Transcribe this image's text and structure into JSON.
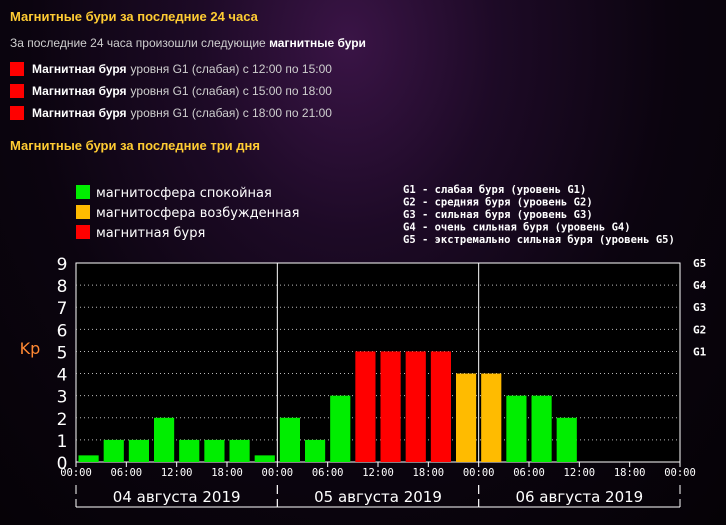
{
  "header24": {
    "title": "Магнитные бури за последние 24 часа"
  },
  "intro": {
    "text": "За последние 24 часа произошли следующие",
    "bold": "магнитные бури"
  },
  "storms": [
    {
      "name": "Магнитная буря",
      "detail": "уровня G1 (слабая) с 12:00 по 15:00"
    },
    {
      "name": "Магнитная буря",
      "detail": "уровня G1 (слабая) с 15:00 по 18:00"
    },
    {
      "name": "Магнитная буря",
      "detail": "уровня G1 (слабая) с 18:00 по 21:00"
    }
  ],
  "header3d": {
    "title": "Магнитные бури за последние три дня"
  },
  "colors": {
    "calm": "#00ee00",
    "excited": "#ffbb00",
    "storm": "#ff0000",
    "title": "#ffcc33",
    "kp": "#ff8833"
  },
  "chart_data": {
    "type": "bar",
    "ylabel": "Kp",
    "ylim": [
      0,
      9
    ],
    "yticks": [
      0,
      1,
      2,
      3,
      4,
      5,
      6,
      7,
      8,
      9
    ],
    "right_ticks": [
      {
        "label": "G5",
        "value": 9
      },
      {
        "label": "G4",
        "value": 8
      },
      {
        "label": "G3",
        "value": 7
      },
      {
        "label": "G2",
        "value": 6
      },
      {
        "label": "G1",
        "value": 5
      }
    ],
    "grid": true,
    "legend": [
      {
        "label": "магнитосфера спокойная",
        "color": "#00ee00"
      },
      {
        "label": "магнитосфера возбужденная",
        "color": "#ffbb00"
      },
      {
        "label": "магнитная буря",
        "color": "#ff0000"
      }
    ],
    "legend_placement": "top-left",
    "g_legend": [
      "G1 - слабая буря (уровень G1)",
      "G2 - средняя буря (уровень G2)",
      "G3 - сильная буря (уровень G3)",
      "G4 - очень сильная буря (уровень G4)",
      "G5 - экстремально сильная буря (уровень G5)"
    ],
    "xtick_labels": [
      "00:00",
      "06:00",
      "12:00",
      "18:00",
      "00:00",
      "06:00",
      "12:00",
      "18:00",
      "00:00",
      "06:00",
      "12:00",
      "18:00",
      "00:00"
    ],
    "day_labels": [
      "04 августа 2019",
      "05 августа 2019",
      "06 августа 2019"
    ],
    "values": [
      0.3,
      1,
      1,
      2,
      1,
      1,
      1,
      0.3,
      2,
      1,
      3,
      5,
      5,
      5,
      5,
      4,
      4,
      3,
      3,
      2
    ],
    "status": [
      "calm",
      "calm",
      "calm",
      "calm",
      "calm",
      "calm",
      "calm",
      "calm",
      "calm",
      "calm",
      "calm",
      "storm",
      "storm",
      "storm",
      "storm",
      "excited",
      "excited",
      "calm",
      "calm",
      "calm"
    ]
  }
}
